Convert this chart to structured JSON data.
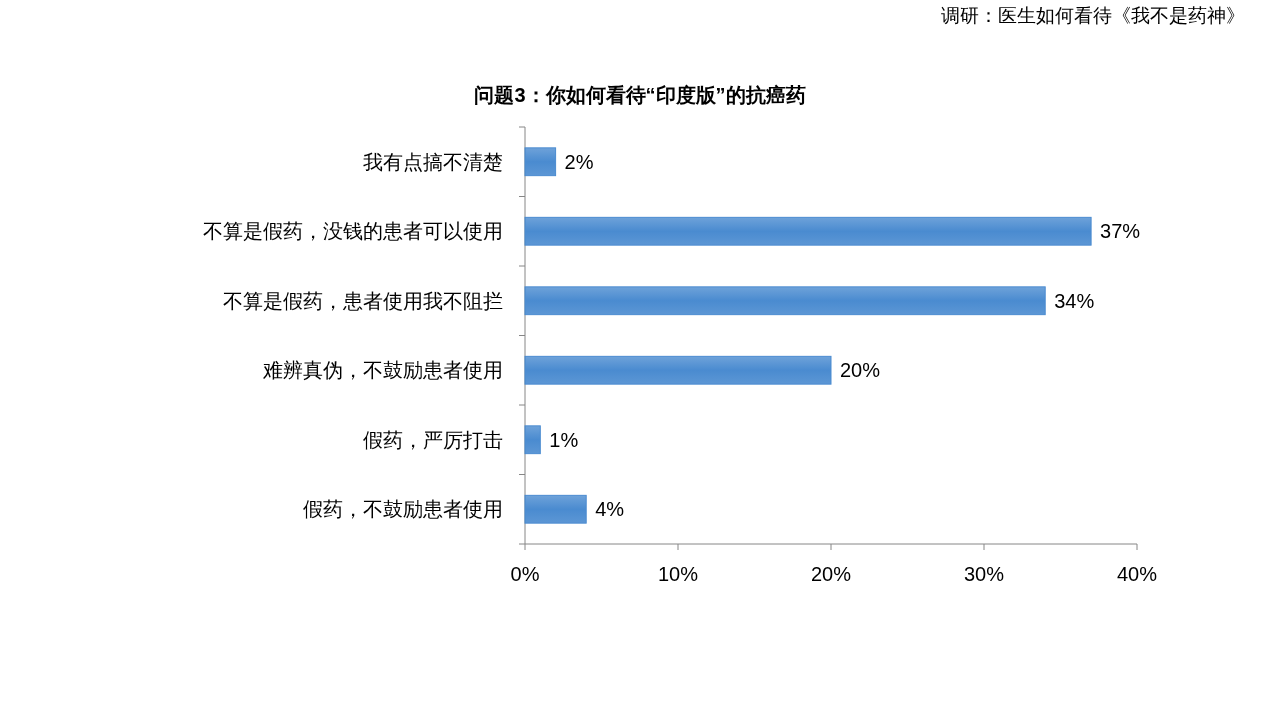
{
  "chart_data": {
    "type": "bar",
    "orientation": "horizontal",
    "title": "问题3：你如何看待“印度版”的抗癌药",
    "annotations": [
      "调研：医生如何看待《我不是药神》"
    ],
    "categories": [
      "我有点搞不清楚",
      "不算是假药，没钱的患者可以使用",
      "不算是假药，患者使用我不阻拦",
      "难辨真伪，不鼓励患者使用",
      "假药，严厉打击",
      "假药，不鼓励患者使用"
    ],
    "values": [
      2,
      37,
      34,
      20,
      1,
      4
    ],
    "value_labels": [
      "2%",
      "37%",
      "34%",
      "20%",
      "1%",
      "4%"
    ],
    "color": "#4a8bd0",
    "xlim": [
      0,
      40
    ],
    "xticks": [
      {
        "value": 0,
        "label": "0%"
      },
      {
        "value": 10,
        "label": "10%"
      },
      {
        "value": 20,
        "label": "20%"
      },
      {
        "value": 30,
        "label": "30%"
      },
      {
        "value": 40,
        "label": "40%"
      }
    ],
    "grid": false
  }
}
